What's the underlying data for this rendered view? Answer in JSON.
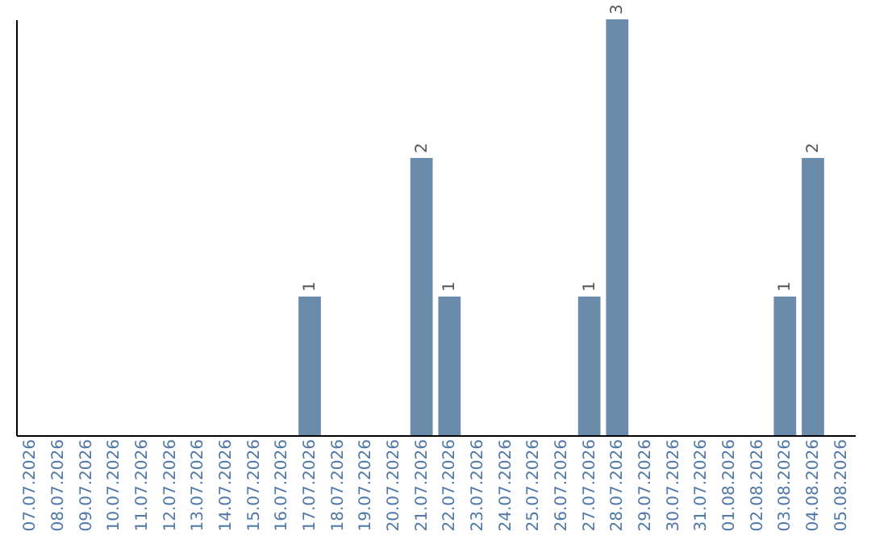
{
  "chart_data": {
    "type": "bar",
    "categories": [
      "07.07.2026",
      "08.07.2026",
      "09.07.2026",
      "10.07.2026",
      "11.07.2026",
      "12.07.2026",
      "13.07.2026",
      "14.07.2026",
      "15.07.2026",
      "16.07.2026",
      "17.07.2026",
      "18.07.2026",
      "19.07.2026",
      "20.07.2026",
      "21.07.2026",
      "22.07.2026",
      "23.07.2026",
      "24.07.2026",
      "25.07.2026",
      "26.07.2026",
      "27.07.2026",
      "28.07.2026",
      "29.07.2026",
      "30.07.2026",
      "31.07.2026",
      "01.08.2026",
      "02.08.2026",
      "03.08.2026",
      "04.08.2026",
      "05.08.2026"
    ],
    "values": [
      0,
      0,
      0,
      0,
      0,
      0,
      0,
      0,
      0,
      0,
      1,
      0,
      0,
      0,
      2,
      1,
      0,
      0,
      0,
      0,
      1,
      3,
      0,
      0,
      0,
      0,
      0,
      1,
      2,
      0
    ],
    "value_labels": [
      null,
      null,
      null,
      null,
      null,
      null,
      null,
      null,
      null,
      null,
      "1",
      null,
      null,
      null,
      "2",
      "1",
      null,
      null,
      null,
      null,
      "1",
      "3",
      null,
      null,
      null,
      null,
      null,
      "1",
      "2",
      null
    ],
    "color": "#6a8caa",
    "grid": false,
    "tick_labels": "x"
  }
}
